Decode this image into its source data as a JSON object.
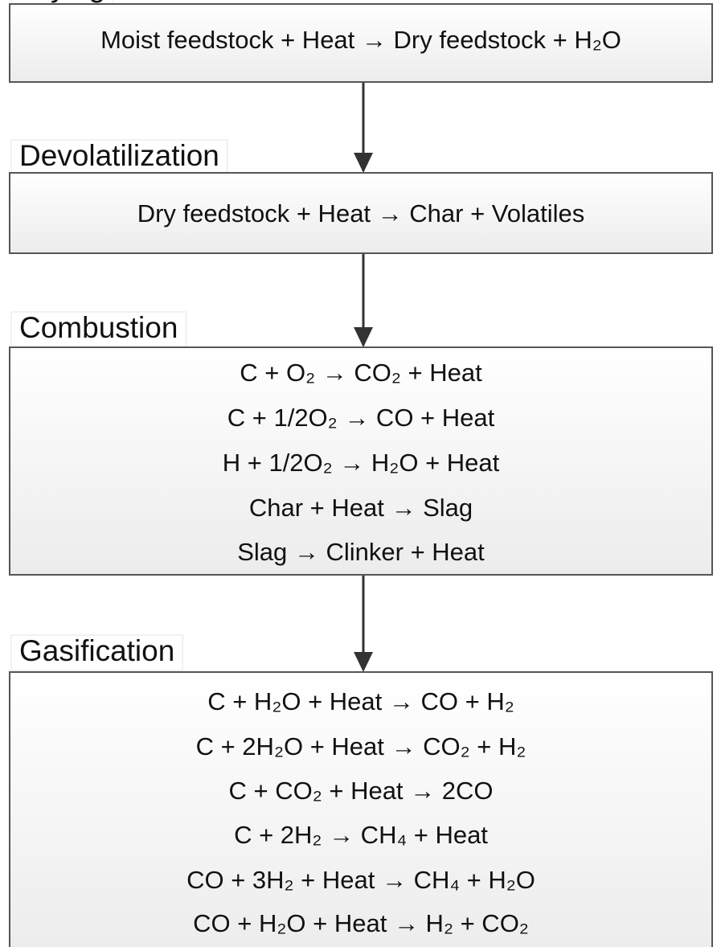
{
  "stages": [
    {
      "label": "Drying",
      "equations": [
        "Moist feedstock + Heat → Dry feedstock + H₂O"
      ]
    },
    {
      "label": "Devolatilization",
      "equations": [
        "Dry feedstock + Heat → Char + Volatiles"
      ]
    },
    {
      "label": "Combustion",
      "equations": [
        "C + O₂ → CO₂ + Heat",
        "C + 1/2O₂ → CO + Heat",
        "H + 1/2O₂ → H₂O + Heat",
        "Char + Heat → Slag",
        "Slag → Clinker + Heat"
      ]
    },
    {
      "label": "Gasification",
      "equations": [
        "C + H₂O + Heat → CO + H₂",
        "C + 2H₂O + Heat → CO₂ + H₂",
        "C + CO₂ + Heat → 2CO",
        "C + 2H₂ → CH₄ + Heat",
        "CO + 3H₂ + Heat → CH₄ + H₂O",
        "CO + H₂O + Heat → H₂ + CO₂"
      ]
    }
  ]
}
